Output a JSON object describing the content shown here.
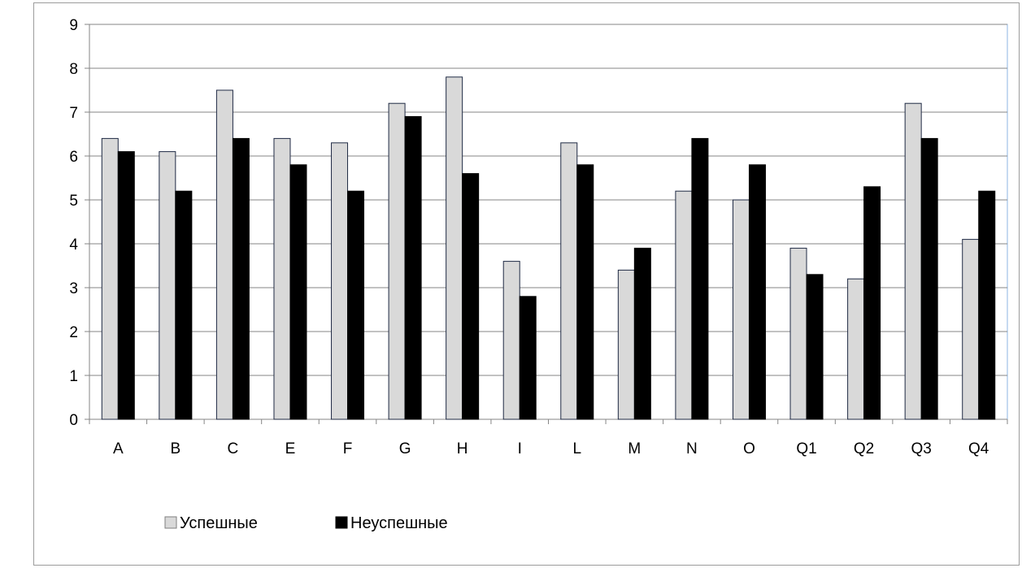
{
  "chart_data": {
    "type": "bar",
    "categories": [
      "A",
      "B",
      "C",
      "E",
      "F",
      "G",
      "H",
      "I",
      "L",
      "M",
      "N",
      "O",
      "Q1",
      "Q2",
      "Q3",
      "Q4"
    ],
    "series": [
      {
        "name": "Успешные",
        "values": [
          6.4,
          6.1,
          7.5,
          6.4,
          6.3,
          7.2,
          7.8,
          3.6,
          6.3,
          3.4,
          5.2,
          5.0,
          3.9,
          3.2,
          7.2,
          4.1
        ],
        "color": "#d9d9d9"
      },
      {
        "name": "Неуспешные",
        "values": [
          6.1,
          5.2,
          6.4,
          5.8,
          5.2,
          6.9,
          5.6,
          2.8,
          5.8,
          3.9,
          6.4,
          5.8,
          3.3,
          5.3,
          6.4,
          5.2
        ],
        "color": "#000000"
      }
    ],
    "yticks": [
      "0",
      "1",
      "2",
      "3",
      "4",
      "5",
      "6",
      "7",
      "8",
      "9"
    ],
    "ylim": [
      0,
      9
    ],
    "grid": true,
    "legend_position": "bottom-left"
  }
}
